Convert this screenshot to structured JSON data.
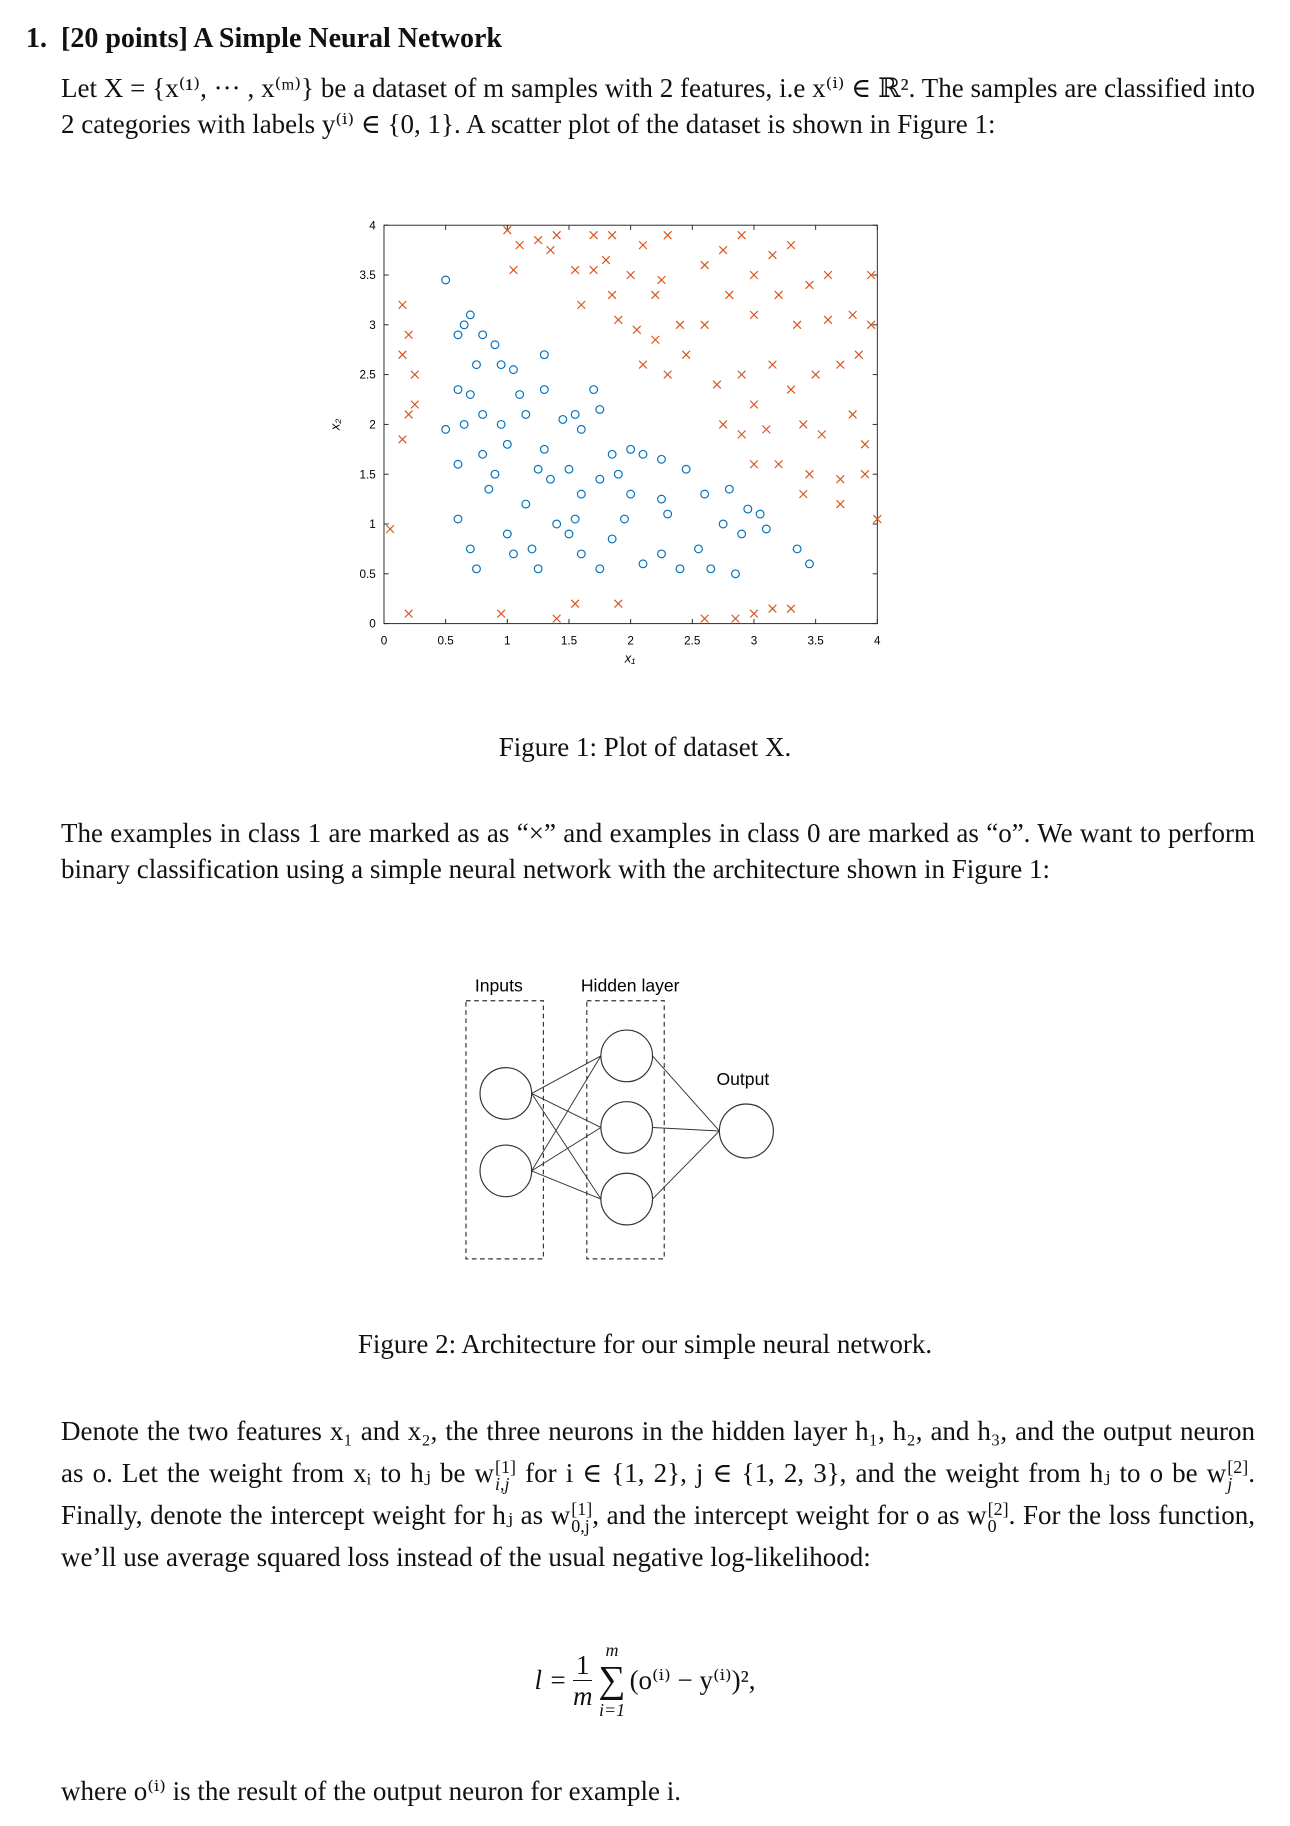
{
  "heading": {
    "number": "1.",
    "title": "[20 points] A Simple Neural Network"
  },
  "intro": "Let X = {x⁽¹⁾, ··· , x⁽ᵐ⁾} be a dataset of m samples with 2 features, i.e x⁽ⁱ⁾ ∈ ℝ². The samples are classified into 2 categories with labels y⁽ⁱ⁾ ∈ {0, 1}. A scatter plot of the dataset is shown in Figure 1:",
  "chart_data": {
    "type": "scatter",
    "xlabel": "x₁",
    "ylabel": "x₂",
    "xlim": [
      0,
      4
    ],
    "ylim": [
      0,
      4
    ],
    "xticks": [
      0,
      0.5,
      1,
      1.5,
      2,
      2.5,
      3,
      3.5,
      4
    ],
    "yticks": [
      0,
      0.5,
      1,
      1.5,
      2,
      2.5,
      3,
      3.5,
      4
    ],
    "series": [
      {
        "marker": "x",
        "color": "#d95319",
        "x": [
          0.15,
          0.2,
          0.15,
          0.25,
          0.2,
          0.15,
          0.05,
          0.2,
          0.25,
          1.0,
          1.1,
          1.25,
          1.35,
          1.4,
          1.05,
          1.7,
          1.85,
          2.1,
          2.3,
          1.55,
          1.7,
          1.8,
          1.6,
          1.85,
          2.0,
          2.2,
          2.25,
          1.9,
          2.05,
          2.2,
          2.4,
          2.1,
          2.3,
          2.45,
          2.6,
          2.75,
          2.6,
          2.8,
          2.9,
          3.0,
          3.15,
          3.3,
          3.2,
          3.45,
          3.6,
          3.0,
          3.35,
          3.6,
          3.8,
          3.95,
          3.95,
          2.7,
          2.9,
          3.0,
          3.15,
          3.3,
          3.5,
          3.7,
          3.85,
          2.75,
          2.9,
          3.1,
          3.4,
          3.55,
          3.8,
          3.9,
          3.2,
          3.45,
          3.7,
          3.9,
          3.7,
          4.0,
          3.4,
          3.0,
          0.95,
          1.4,
          1.55,
          1.9,
          2.6,
          2.85,
          3.0,
          3.15,
          3.3
        ],
        "values": [
          3.2,
          2.9,
          2.7,
          2.5,
          2.1,
          1.85,
          0.95,
          0.1,
          2.2,
          3.95,
          3.8,
          3.85,
          3.75,
          3.9,
          3.55,
          3.9,
          3.9,
          3.8,
          3.9,
          3.55,
          3.55,
          3.65,
          3.2,
          3.3,
          3.5,
          3.3,
          3.45,
          3.05,
          2.95,
          2.85,
          3.0,
          2.6,
          2.5,
          2.7,
          3.6,
          3.75,
          3.0,
          3.3,
          3.9,
          3.5,
          3.7,
          3.8,
          3.3,
          3.4,
          3.5,
          3.1,
          3.0,
          3.05,
          3.1,
          3.0,
          3.5,
          2.4,
          2.5,
          2.2,
          2.6,
          2.35,
          2.5,
          2.6,
          2.7,
          2.0,
          1.9,
          1.95,
          2.0,
          1.9,
          2.1,
          1.8,
          1.6,
          1.5,
          1.45,
          1.5,
          1.2,
          1.05,
          1.3,
          1.6,
          0.1,
          0.05,
          0.2,
          0.2,
          0.05,
          0.05,
          0.1,
          0.15,
          0.15
        ]
      },
      {
        "marker": "o",
        "color": "#0072bd",
        "x": [
          0.5,
          0.65,
          0.7,
          0.6,
          0.8,
          0.75,
          0.9,
          0.95,
          1.05,
          1.3,
          0.6,
          0.7,
          0.8,
          0.65,
          0.95,
          1.1,
          1.3,
          1.15,
          1.45,
          1.55,
          1.75,
          1.6,
          1.7,
          0.5,
          0.6,
          0.8,
          0.9,
          1.0,
          1.3,
          1.35,
          1.25,
          1.5,
          1.6,
          1.85,
          1.75,
          1.9,
          2.0,
          2.1,
          2.25,
          2.0,
          2.3,
          2.45,
          2.6,
          2.8,
          2.95,
          2.75,
          2.9,
          3.1,
          3.35,
          3.45,
          0.6,
          0.7,
          0.75,
          1.0,
          1.05,
          1.2,
          1.25,
          1.55,
          1.6,
          1.75,
          1.85,
          2.1,
          2.25,
          2.4,
          2.55,
          2.65,
          2.85,
          3.05,
          1.15,
          1.4,
          0.85,
          1.5,
          1.95,
          2.25
        ],
        "values": [
          3.45,
          3.0,
          3.1,
          2.9,
          2.9,
          2.6,
          2.8,
          2.6,
          2.55,
          2.7,
          2.35,
          2.3,
          2.1,
          2.0,
          2.0,
          2.3,
          2.35,
          2.1,
          2.05,
          2.1,
          2.15,
          1.95,
          2.35,
          1.95,
          1.6,
          1.7,
          1.5,
          1.8,
          1.75,
          1.45,
          1.55,
          1.55,
          1.3,
          1.7,
          1.45,
          1.5,
          1.75,
          1.7,
          1.65,
          1.3,
          1.1,
          1.55,
          1.3,
          1.35,
          1.15,
          1.0,
          0.9,
          0.95,
          0.75,
          0.6,
          1.05,
          0.75,
          0.55,
          0.9,
          0.7,
          0.75,
          0.55,
          1.05,
          0.7,
          0.55,
          0.85,
          0.6,
          0.7,
          0.55,
          0.75,
          0.55,
          0.5,
          1.1,
          1.2,
          1.0,
          1.35,
          0.9,
          1.05,
          1.25
        ]
      }
    ]
  },
  "figure1_caption": "Figure 1: Plot of dataset X.",
  "paragraph2": "The examples in class 1 are marked as as “×” and examples in class 0 are marked as “o”. We want to perform binary classification using a simple neural network with the architecture shown in Figure 1:",
  "diagram": {
    "inputs": "Inputs",
    "hidden": "Hidden layer",
    "output": "Output"
  },
  "figure2_caption": "Figure 2: Architecture for our simple neural network.",
  "paragraph3": [
    "Denote the two features x₁ and x₂, the three neurons in the hidden layer h₁, h₂, and h₃, and the output neuron as o. Let the weight from xᵢ to hⱼ be w",
    "[1]",
    "i,j",
    " for i ∈ {1, 2}, j ∈ {1, 2, 3}, and the weight from hⱼ to o be w",
    "[2]",
    "j",
    ". Finally, denote the intercept weight for hⱼ as w",
    "[1]",
    "0,j",
    ", and the intercept weight for o as w",
    "[2]",
    "0",
    ". For the loss function, we’ll use average squared loss instead of the usual negative log-likelihood:"
  ],
  "formula": {
    "lhs": "l =",
    "numerator": "1",
    "denominator": "m",
    "sum": "∑",
    "upper": "m",
    "lower": "i=1",
    "rhs": "(o⁽ⁱ⁾ − y⁽ⁱ⁾)²,"
  },
  "closing": "where o⁽ⁱ⁾ is the result of the output neuron for example i."
}
